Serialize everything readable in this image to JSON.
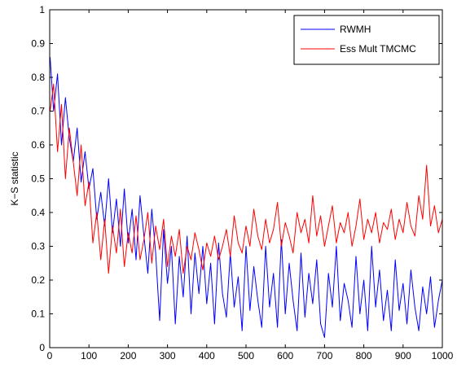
{
  "chart_data": {
    "type": "line",
    "title": "",
    "xlabel": "",
    "ylabel": "K−S statistic",
    "xlim": [
      0,
      1000
    ],
    "ylim": [
      0,
      1
    ],
    "xticks": [
      0,
      100,
      200,
      300,
      400,
      500,
      600,
      700,
      800,
      900,
      1000
    ],
    "yticks": [
      0,
      0.1,
      0.2,
      0.3,
      0.4,
      0.5,
      0.6,
      0.7,
      0.8,
      0.9,
      1
    ],
    "ytick_labels": [
      "0",
      "0.1",
      "0.2",
      "0.3",
      "0.4",
      "0.5",
      "0.6",
      "0.7",
      "0.8",
      "0.9",
      "1"
    ],
    "grid": false,
    "legend_position": "top-right",
    "x": [
      1,
      10,
      20,
      30,
      40,
      50,
      60,
      70,
      80,
      90,
      100,
      110,
      120,
      130,
      140,
      150,
      160,
      170,
      180,
      190,
      200,
      210,
      220,
      230,
      240,
      250,
      260,
      270,
      280,
      290,
      300,
      310,
      320,
      330,
      340,
      350,
      360,
      370,
      380,
      390,
      400,
      410,
      420,
      430,
      440,
      450,
      460,
      470,
      480,
      490,
      500,
      510,
      520,
      530,
      540,
      550,
      560,
      570,
      580,
      590,
      600,
      610,
      620,
      630,
      640,
      650,
      660,
      670,
      680,
      690,
      700,
      710,
      720,
      730,
      740,
      750,
      760,
      770,
      780,
      790,
      800,
      810,
      820,
      830,
      840,
      850,
      860,
      870,
      880,
      890,
      900,
      910,
      920,
      930,
      940,
      950,
      960,
      970,
      980,
      990,
      1000
    ],
    "series": [
      {
        "name": "RWMH",
        "color": "#0000ff",
        "values": [
          0.86,
          0.7,
          0.81,
          0.6,
          0.74,
          0.62,
          0.55,
          0.65,
          0.49,
          0.58,
          0.47,
          0.53,
          0.38,
          0.46,
          0.36,
          0.5,
          0.34,
          0.44,
          0.3,
          0.47,
          0.31,
          0.41,
          0.26,
          0.45,
          0.33,
          0.22,
          0.41,
          0.28,
          0.08,
          0.35,
          0.19,
          0.3,
          0.07,
          0.27,
          0.15,
          0.33,
          0.1,
          0.28,
          0.16,
          0.3,
          0.13,
          0.25,
          0.07,
          0.31,
          0.16,
          0.09,
          0.28,
          0.12,
          0.21,
          0.05,
          0.3,
          0.11,
          0.24,
          0.14,
          0.06,
          0.3,
          0.12,
          0.22,
          0.06,
          0.32,
          0.1,
          0.25,
          0.14,
          0.05,
          0.28,
          0.09,
          0.22,
          0.13,
          0.26,
          0.07,
          0.03,
          0.22,
          0.12,
          0.3,
          0.08,
          0.19,
          0.14,
          0.06,
          0.27,
          0.1,
          0.2,
          0.05,
          0.3,
          0.12,
          0.23,
          0.08,
          0.17,
          0.05,
          0.26,
          0.11,
          0.19,
          0.07,
          0.23,
          0.12,
          0.05,
          0.18,
          0.1,
          0.21,
          0.06,
          0.14,
          0.2
        ]
      },
      {
        "name": "Ess Mult TMCMC",
        "color": "#ff0000",
        "values": [
          0.7,
          0.78,
          0.58,
          0.72,
          0.5,
          0.65,
          0.55,
          0.45,
          0.6,
          0.42,
          0.49,
          0.31,
          0.4,
          0.26,
          0.38,
          0.22,
          0.36,
          0.28,
          0.41,
          0.24,
          0.34,
          0.28,
          0.39,
          0.26,
          0.32,
          0.4,
          0.25,
          0.36,
          0.29,
          0.38,
          0.24,
          0.33,
          0.27,
          0.35,
          0.22,
          0.3,
          0.26,
          0.34,
          0.29,
          0.23,
          0.31,
          0.27,
          0.33,
          0.26,
          0.3,
          0.35,
          0.27,
          0.39,
          0.31,
          0.28,
          0.36,
          0.3,
          0.41,
          0.33,
          0.29,
          0.38,
          0.31,
          0.35,
          0.43,
          0.3,
          0.37,
          0.33,
          0.28,
          0.4,
          0.34,
          0.38,
          0.31,
          0.45,
          0.33,
          0.39,
          0.3,
          0.36,
          0.42,
          0.31,
          0.37,
          0.34,
          0.4,
          0.3,
          0.36,
          0.44,
          0.32,
          0.38,
          0.34,
          0.4,
          0.31,
          0.37,
          0.35,
          0.41,
          0.32,
          0.38,
          0.34,
          0.43,
          0.36,
          0.33,
          0.45,
          0.38,
          0.54,
          0.36,
          0.42,
          0.34,
          0.38
        ]
      }
    ]
  }
}
